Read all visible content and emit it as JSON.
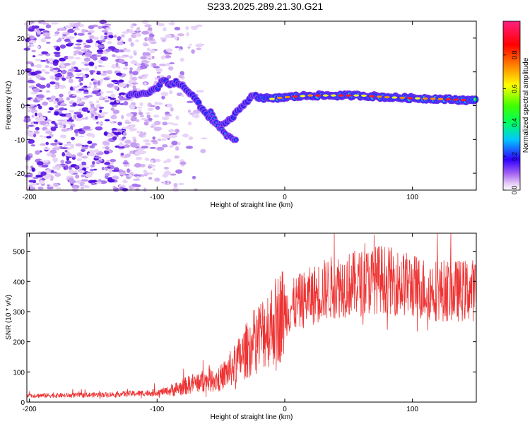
{
  "title": "S233.2025.289.21.30.G21",
  "chart_data": [
    {
      "type": "heatmap",
      "name": "spectrogram",
      "xlabel": "Height of straight line (km)",
      "ylabel": "Frequency (Hz)",
      "xlim": [
        -202,
        150
      ],
      "ylim": [
        -25,
        25
      ],
      "xticks": [
        -200,
        -100,
        0,
        100
      ],
      "yticks": [
        -20,
        -10,
        0,
        10,
        20
      ],
      "colorbar": {
        "label": "Normalized spectral amplitude",
        "range": [
          0,
          1
        ],
        "ticks": [
          0.0,
          0.2,
          0.4,
          0.6,
          0.8
        ]
      },
      "signal_track": [
        {
          "x": -122,
          "y": 3
        },
        {
          "x": -110,
          "y": 3.5
        },
        {
          "x": -100,
          "y": 5
        },
        {
          "x": -95,
          "y": 8
        },
        {
          "x": -90,
          "y": 6
        },
        {
          "x": -85,
          "y": 7
        },
        {
          "x": -80,
          "y": 6
        },
        {
          "x": -75,
          "y": 4
        },
        {
          "x": -70,
          "y": 2
        },
        {
          "x": -65,
          "y": -1
        },
        {
          "x": -60,
          "y": -3
        },
        {
          "x": -55,
          "y": -5
        },
        {
          "x": -50,
          "y": -6
        },
        {
          "x": -45,
          "y": -5
        },
        {
          "x": -40,
          "y": -3
        },
        {
          "x": -35,
          "y": -1
        },
        {
          "x": -30,
          "y": 1
        },
        {
          "x": -25,
          "y": 3
        },
        {
          "x": -20,
          "y": 2.5
        },
        {
          "x": -10,
          "y": 2
        },
        {
          "x": 0,
          "y": 2.5
        },
        {
          "x": 20,
          "y": 3
        },
        {
          "x": 40,
          "y": 3
        },
        {
          "x": 60,
          "y": 3
        },
        {
          "x": 80,
          "y": 2.5
        },
        {
          "x": 100,
          "y": 2.2
        },
        {
          "x": 120,
          "y": 2
        },
        {
          "x": 150,
          "y": 1.5
        }
      ],
      "branch_track": [
        {
          "x": -58,
          "y": -2
        },
        {
          "x": -52,
          "y": -6
        },
        {
          "x": -46,
          "y": -9
        },
        {
          "x": -38,
          "y": -10
        }
      ],
      "noise_region": {
        "x_from": -202,
        "x_to": -60,
        "y_from": -25,
        "y_to": 25
      }
    },
    {
      "type": "line",
      "name": "snr",
      "xlabel": "Height of straight line (km)",
      "ylabel": "SNR (10 * v/v)",
      "xlim": [
        -202,
        150
      ],
      "ylim": [
        0,
        560
      ],
      "xticks": [
        -200,
        -100,
        0,
        100
      ],
      "yticks": [
        0,
        100,
        200,
        300,
        400,
        500
      ],
      "color": "#ee3333",
      "trend": [
        {
          "x": -202,
          "y": 22
        },
        {
          "x": -180,
          "y": 22
        },
        {
          "x": -160,
          "y": 23
        },
        {
          "x": -140,
          "y": 25
        },
        {
          "x": -120,
          "y": 28
        },
        {
          "x": -100,
          "y": 32
        },
        {
          "x": -90,
          "y": 38
        },
        {
          "x": -80,
          "y": 50
        },
        {
          "x": -70,
          "y": 65
        },
        {
          "x": -60,
          "y": 70
        },
        {
          "x": -50,
          "y": 80
        },
        {
          "x": -40,
          "y": 120
        },
        {
          "x": -30,
          "y": 170
        },
        {
          "x": -20,
          "y": 220
        },
        {
          "x": -10,
          "y": 260
        },
        {
          "x": 0,
          "y": 300
        },
        {
          "x": 10,
          "y": 330
        },
        {
          "x": 20,
          "y": 350
        },
        {
          "x": 30,
          "y": 370
        },
        {
          "x": 40,
          "y": 385
        },
        {
          "x": 60,
          "y": 395
        },
        {
          "x": 75,
          "y": 410
        },
        {
          "x": 90,
          "y": 395
        },
        {
          "x": 110,
          "y": 375
        },
        {
          "x": 130,
          "y": 368
        },
        {
          "x": 150,
          "y": 372
        }
      ]
    }
  ]
}
